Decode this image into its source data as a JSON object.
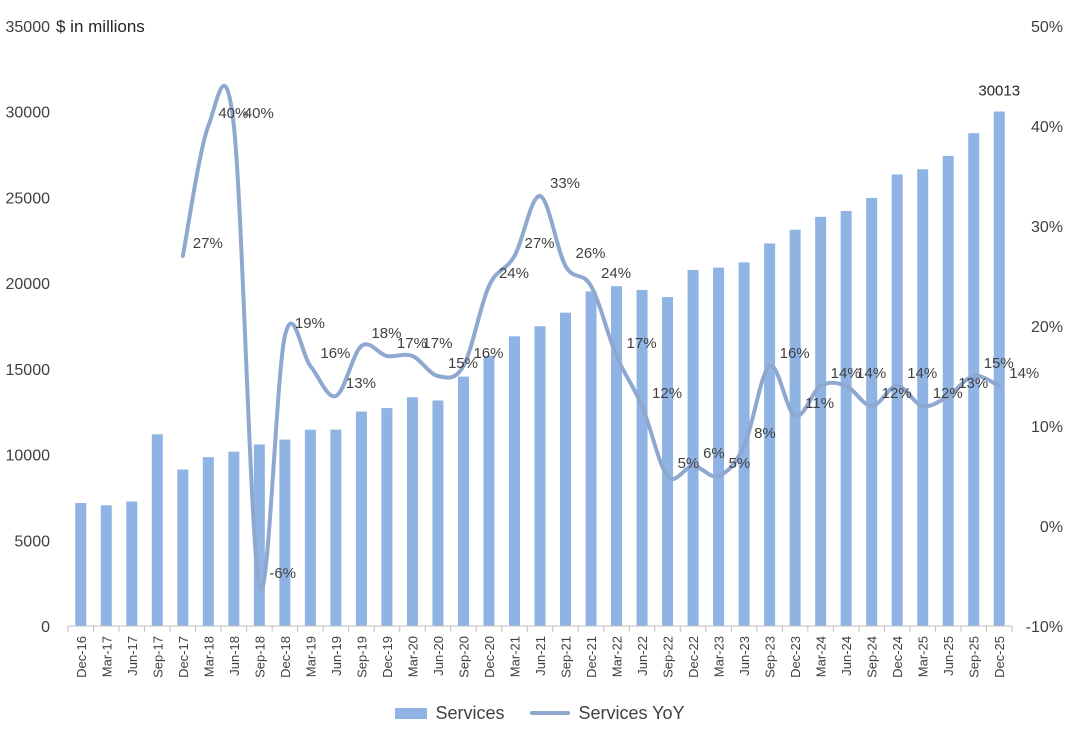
{
  "chart_data": {
    "type": "bar",
    "unit_label": "$ in millions",
    "categories": [
      "Dec-16",
      "Mar-17",
      "Jun-17",
      "Sep-17",
      "Dec-17",
      "Mar-18",
      "Jun-18",
      "Sep-18",
      "Dec-18",
      "Mar-19",
      "Jun-19",
      "Sep-19",
      "Dec-19",
      "Mar-20",
      "Jun-20",
      "Sep-20",
      "Dec-20",
      "Mar-21",
      "Jun-21",
      "Sep-21",
      "Dec-21",
      "Mar-22",
      "Jun-22",
      "Sep-22",
      "Dec-22",
      "Mar-23",
      "Jun-23",
      "Sep-23",
      "Dec-23",
      "Mar-24",
      "Jun-24",
      "Sep-24",
      "Dec-24",
      "Mar-25",
      "Jun-25",
      "Sep-25",
      "Dec-25"
    ],
    "series": [
      {
        "name": "Services",
        "kind": "bar",
        "axis": "left",
        "color": "#8fb4e3",
        "values": [
          7172,
          7041,
          7266,
          11180,
          9129,
          9850,
          10170,
          10591,
          10875,
          11450,
          11455,
          12511,
          12715,
          13348,
          13156,
          14549,
          15761,
          16901,
          17486,
          18277,
          19516,
          19821,
          19604,
          19188,
          20766,
          20907,
          21213,
          22314,
          23117,
          23867,
          24213,
          24972,
          26340,
          26645,
          27423,
          28750,
          30013
        ],
        "data_labels": [
          "",
          "",
          "",
          "",
          "",
          "",
          "",
          "",
          "",
          "",
          "",
          "",
          "",
          "",
          "",
          "",
          "",
          "",
          "",
          "",
          "",
          "",
          "",
          "",
          "",
          "",
          "",
          "",
          "",
          "",
          "",
          "",
          "",
          "",
          "",
          "",
          "30013"
        ]
      },
      {
        "name": "Services YoY",
        "kind": "line",
        "axis": "right",
        "color": "#8ea8d0",
        "values": [
          null,
          null,
          null,
          null,
          27,
          40,
          40,
          -6,
          19,
          16,
          13,
          18,
          17,
          17,
          15,
          16,
          24,
          27,
          33,
          26,
          24,
          17,
          12,
          5,
          6,
          5,
          8,
          16,
          11,
          14,
          14,
          12,
          14,
          12,
          13,
          15,
          14
        ],
        "data_labels": [
          "",
          "",
          "",
          "",
          "27%",
          "40%",
          "40%",
          "-6%",
          "19%",
          "16%",
          "13%",
          "18%",
          "17%",
          "17%",
          "15%",
          "16%",
          "24%",
          "27%",
          "33%",
          "26%",
          "24%",
          "17%",
          "12%",
          "5%",
          "6%",
          "5%",
          "8%",
          "16%",
          "11%",
          "14%",
          "14%",
          "12%",
          "14%",
          "12%",
          "13%",
          "15%",
          "14%"
        ]
      }
    ],
    "y_left": {
      "min": 0,
      "max": 35000,
      "ticks": [
        "0",
        "5000",
        "10000",
        "15000",
        "20000",
        "25000",
        "30000",
        "35000"
      ]
    },
    "y_right": {
      "min": -10,
      "max": 50,
      "ticks": [
        "-10%",
        "0%",
        "10%",
        "20%",
        "30%",
        "40%",
        "50%"
      ]
    },
    "grid": false,
    "legend": "bottom"
  },
  "legend": {
    "bar_label": "Services",
    "line_label": "Services YoY"
  }
}
